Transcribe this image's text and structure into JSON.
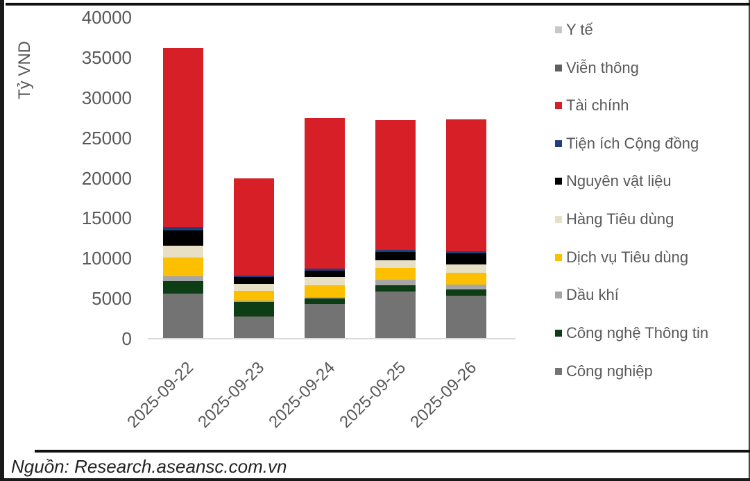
{
  "chart_data": {
    "type": "bar",
    "stacked": true,
    "title": "",
    "xlabel": "",
    "ylabel": "Tỷ VND",
    "ylim": [
      0,
      40000
    ],
    "yticks": [
      0,
      5000,
      10000,
      15000,
      20000,
      25000,
      30000,
      35000,
      40000
    ],
    "grid": false,
    "legend_position": "right",
    "categories": [
      "2025-09-22",
      "2025-09-23",
      "2025-09-24",
      "2025-09-25",
      "2025-09-26"
    ],
    "series": [
      {
        "name": "Công nghiệp",
        "color": "#737373",
        "values": [
          5540,
          2680,
          4240,
          5800,
          5280
        ]
      },
      {
        "name": "Công nghệ Thông tin",
        "color": "#0c3d14",
        "values": [
          1560,
          1820,
          690,
          780,
          780
        ]
      },
      {
        "name": "Dầu khí",
        "color": "#a6a6a6",
        "values": [
          600,
          170,
          170,
          690,
          610
        ]
      },
      {
        "name": "Dịch vụ Tiêu dùng",
        "color": "#fcc000",
        "values": [
          2340,
          1210,
          1470,
          1470,
          1470
        ]
      },
      {
        "name": "Hàng Tiêu dùng",
        "color": "#e8e0c4",
        "values": [
          1470,
          870,
          1040,
          950,
          1040
        ]
      },
      {
        "name": "Nguyên vật liệu",
        "color": "#000000",
        "values": [
          1900,
          870,
          780,
          1040,
          1390
        ]
      },
      {
        "name": "Tiện ích Cộng đồng",
        "color": "#1f3f7f",
        "values": [
          430,
          170,
          260,
          260,
          260
        ]
      },
      {
        "name": "Tài chính",
        "color": "#d71f27",
        "values": [
          22340,
          12120,
          18790,
          16190,
          16450
        ]
      },
      {
        "name": "Viễn thông",
        "color": "#5f5f5f",
        "values": [
          0,
          0,
          0,
          0,
          0
        ]
      },
      {
        "name": "Y tế",
        "color": "#c8c8c8",
        "values": [
          0,
          0,
          0,
          0,
          0
        ]
      }
    ],
    "totals": [
      36180,
      19910,
      27440,
      27180,
      27280
    ]
  },
  "legend": {
    "items": [
      {
        "label": "Y tế",
        "color": "#c8c8c8"
      },
      {
        "label": "Viễn thông",
        "color": "#5f5f5f"
      },
      {
        "label": "Tài chính",
        "color": "#d71f27"
      },
      {
        "label": "Tiện ích Cộng đồng",
        "color": "#1f3f7f"
      },
      {
        "label": "Nguyên vật liệu",
        "color": "#000000"
      },
      {
        "label": "Hàng Tiêu dùng",
        "color": "#e8e0c4"
      },
      {
        "label": "Dịch vụ Tiêu dùng",
        "color": "#fcc000"
      },
      {
        "label": "Dầu khí",
        "color": "#a6a6a6"
      },
      {
        "label": "Công nghệ Thông tin",
        "color": "#0c3d14"
      },
      {
        "label": "Công nghiệp",
        "color": "#737373"
      }
    ]
  },
  "axis": {
    "y_title": "Tỷ VND",
    "y_ticks": [
      "40000",
      "35000",
      "30000",
      "25000",
      "20000",
      "15000",
      "10000",
      "5000",
      "0"
    ],
    "x_ticks": [
      "2025-09-22",
      "2025-09-23",
      "2025-09-24",
      "2025-09-25",
      "2025-09-26"
    ]
  },
  "footer": {
    "source": "Nguồn: Research.aseansc.com.vn"
  }
}
